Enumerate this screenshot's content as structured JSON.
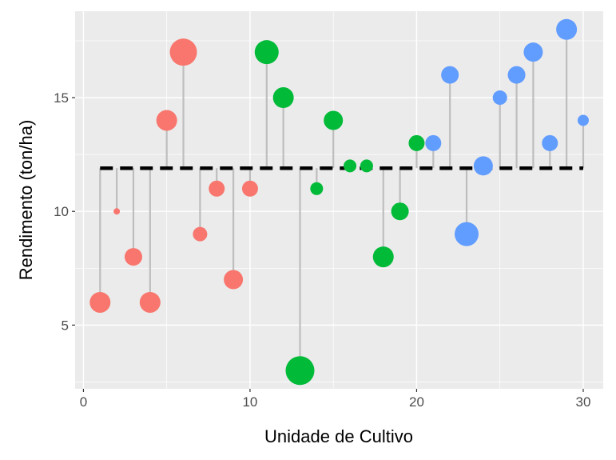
{
  "chart_data": {
    "type": "scatter",
    "subtype": "lollipop",
    "title": "",
    "xlabel": "Unidade de Cultivo",
    "ylabel": "Rendimento (ton/ha)",
    "xlim": [
      -0.5,
      31.2
    ],
    "ylim": [
      2.2,
      18.8
    ],
    "xticks": [
      0,
      10,
      20,
      30
    ],
    "yticks": [
      5,
      10,
      15
    ],
    "xtick_labels": [
      "0",
      "10",
      "20",
      "30"
    ],
    "ytick_labels": [
      "5",
      "10",
      "15"
    ],
    "grid": true,
    "reference_line": {
      "value": 11.9,
      "style": "dashed",
      "color": "#000000"
    },
    "group_colors": [
      "#F8766D",
      "#00BA38",
      "#619CFF"
    ],
    "points": [
      {
        "x": 1,
        "y": 6,
        "group": 0,
        "size": 13
      },
      {
        "x": 2,
        "y": 10,
        "group": 0,
        "size": 4
      },
      {
        "x": 3,
        "y": 8,
        "group": 0,
        "size": 11
      },
      {
        "x": 4,
        "y": 6,
        "group": 0,
        "size": 13
      },
      {
        "x": 5,
        "y": 14,
        "group": 0,
        "size": 13
      },
      {
        "x": 6,
        "y": 17,
        "group": 0,
        "size": 17
      },
      {
        "x": 7,
        "y": 9,
        "group": 0,
        "size": 9
      },
      {
        "x": 8,
        "y": 11,
        "group": 0,
        "size": 10
      },
      {
        "x": 9,
        "y": 7,
        "group": 0,
        "size": 12
      },
      {
        "x": 10,
        "y": 11,
        "group": 0,
        "size": 10
      },
      {
        "x": 11,
        "y": 17,
        "group": 1,
        "size": 15
      },
      {
        "x": 12,
        "y": 15,
        "group": 1,
        "size": 13
      },
      {
        "x": 13,
        "y": 3,
        "group": 1,
        "size": 18
      },
      {
        "x": 14,
        "y": 11,
        "group": 1,
        "size": 8
      },
      {
        "x": 15,
        "y": 14,
        "group": 1,
        "size": 12
      },
      {
        "x": 16,
        "y": 12,
        "group": 1,
        "size": 8
      },
      {
        "x": 17,
        "y": 12,
        "group": 1,
        "size": 8
      },
      {
        "x": 18,
        "y": 8,
        "group": 1,
        "size": 13
      },
      {
        "x": 19,
        "y": 10,
        "group": 1,
        "size": 11
      },
      {
        "x": 20,
        "y": 13,
        "group": 1,
        "size": 10
      },
      {
        "x": 21,
        "y": 13,
        "group": 2,
        "size": 10
      },
      {
        "x": 22,
        "y": 16,
        "group": 2,
        "size": 11
      },
      {
        "x": 23,
        "y": 9,
        "group": 2,
        "size": 15
      },
      {
        "x": 24,
        "y": 12,
        "group": 2,
        "size": 12
      },
      {
        "x": 25,
        "y": 15,
        "group": 2,
        "size": 9
      },
      {
        "x": 26,
        "y": 16,
        "group": 2,
        "size": 11
      },
      {
        "x": 27,
        "y": 17,
        "group": 2,
        "size": 12
      },
      {
        "x": 28,
        "y": 13,
        "group": 2,
        "size": 10
      },
      {
        "x": 29,
        "y": 18,
        "group": 2,
        "size": 13
      },
      {
        "x": 30,
        "y": 14,
        "group": 2,
        "size": 7
      }
    ]
  }
}
